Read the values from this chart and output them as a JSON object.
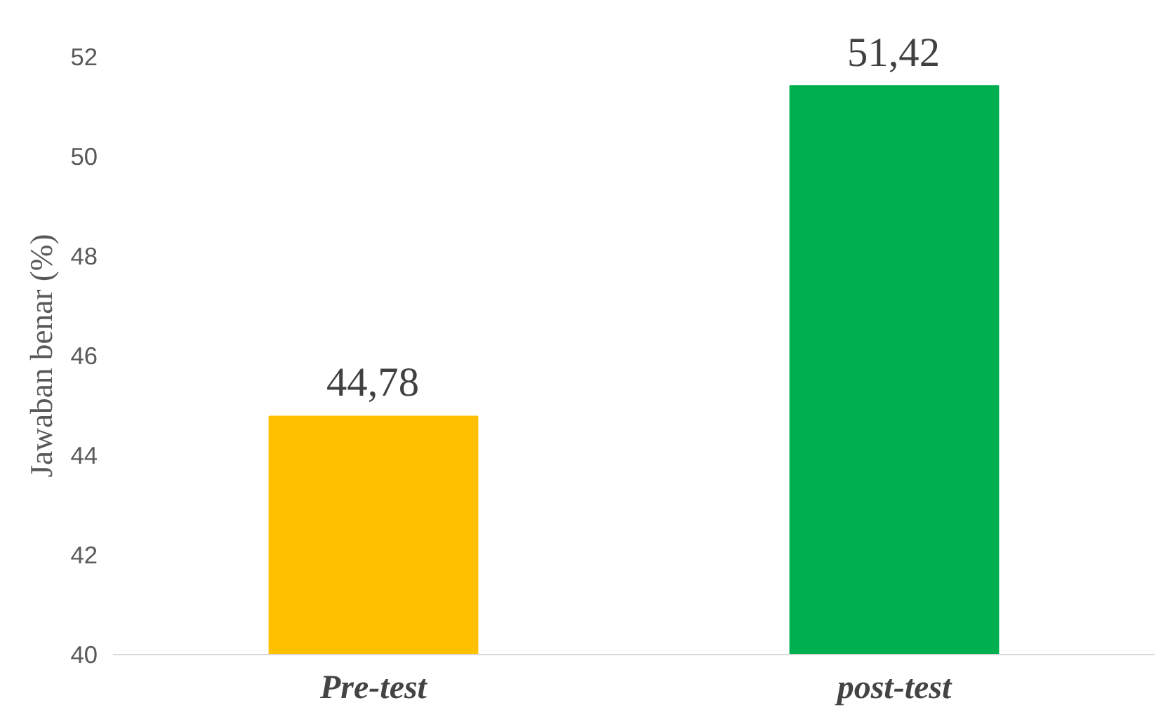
{
  "chart_data": {
    "type": "bar",
    "ylabel": "Jawaban benar (%)",
    "categories": [
      "Pre-test",
      "post-test"
    ],
    "values": [
      44.78,
      51.42
    ],
    "colors": [
      "#ffc000",
      "#00b050"
    ],
    "value_labels": [
      "44,78",
      "51,42"
    ],
    "ylim": [
      40,
      52
    ],
    "yticks": [
      40,
      42,
      44,
      46,
      48,
      50,
      52
    ],
    "grid": false
  }
}
